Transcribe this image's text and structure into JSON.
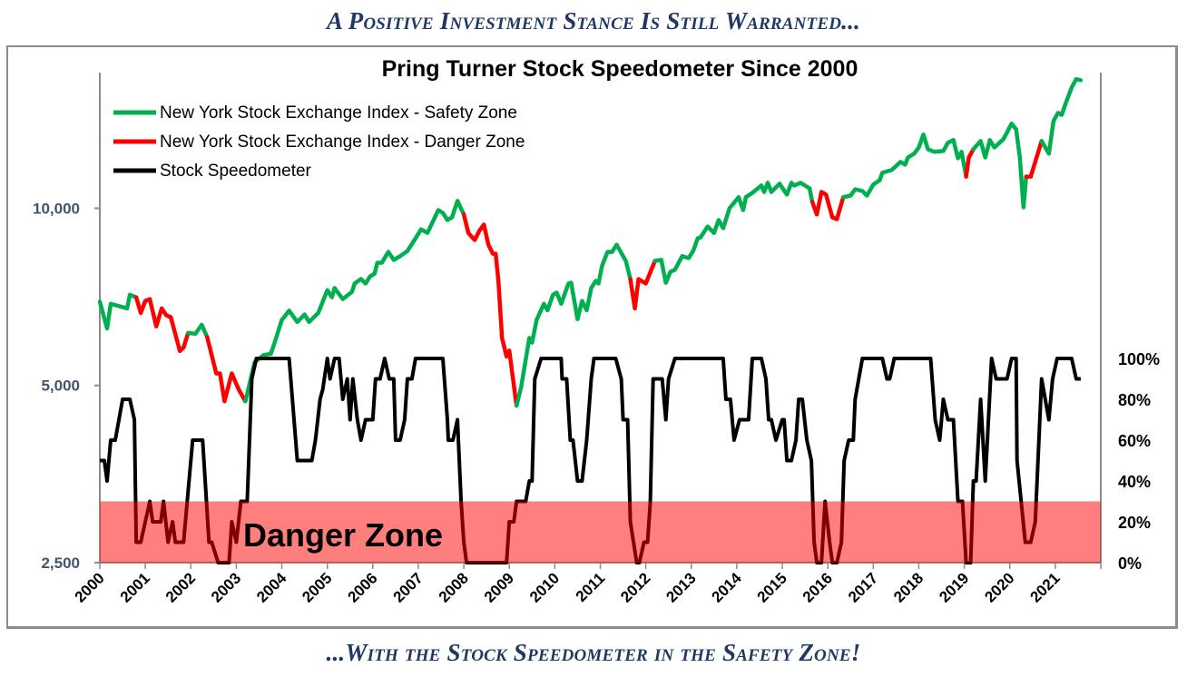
{
  "header": {
    "top_banner": "A Positive Investment Stance Is Still Warranted...",
    "bottom_banner": "...With the Stock Speedometer in the Safety Zone!"
  },
  "colors": {
    "safety": "#00b050",
    "danger": "#ff0000",
    "speedometer": "#000000",
    "danger_zone": "#ff0000",
    "banner": "#1f3864"
  },
  "chart_data": {
    "type": "line",
    "title": "Pring Turner Stock Speedometer Since 2000",
    "annotation": "Danger Zone",
    "legend": [
      "New York Stock Exchange Index - Safety Zone",
      "New York Stock Exchange Index - Danger Zone",
      "Stock Speedometer"
    ],
    "legend_position": "top-left",
    "x_ticks": [
      "2000",
      "2001",
      "2002",
      "2003",
      "2004",
      "2005",
      "2006",
      "2007",
      "2008",
      "2009",
      "2010",
      "2011",
      "2012",
      "2013",
      "2014",
      "2015",
      "2016",
      "2017",
      "2018",
      "2019",
      "2020",
      "2021"
    ],
    "xlim": [
      2000,
      2022
    ],
    "left_axis": {
      "scale": "log",
      "ticks": [
        2500,
        5000,
        10000
      ],
      "tick_labels": [
        "2,500",
        "5,000",
        "10,000"
      ],
      "ylim": [
        2500,
        17000
      ]
    },
    "right_axis": {
      "ticks": [
        0,
        20,
        40,
        60,
        80,
        100
      ],
      "tick_labels": [
        "0%",
        "20%",
        "40%",
        "60%",
        "80%",
        "100%"
      ],
      "ylim": [
        0,
        100
      ]
    },
    "danger_zone_range": [
      0,
      30
    ],
    "danger_periods": [
      [
        2000.8,
        2001.9
      ],
      [
        2002.36,
        2003.15
      ],
      [
        2007.96,
        2009.16
      ],
      [
        2011.66,
        2012.2
      ],
      [
        2015.66,
        2016.36
      ],
      [
        2019.04,
        2019.2
      ],
      [
        2020.36,
        2020.7
      ]
    ],
    "nyse": [
      [
        2000.0,
        6940
      ],
      [
        2000.16,
        6250
      ],
      [
        2000.24,
        6880
      ],
      [
        2000.6,
        6760
      ],
      [
        2000.66,
        7130
      ],
      [
        2000.8,
        7060
      ],
      [
        2000.9,
        6640
      ],
      [
        2001.0,
        6960
      ],
      [
        2001.1,
        7010
      ],
      [
        2001.24,
        6300
      ],
      [
        2001.36,
        6760
      ],
      [
        2001.46,
        6580
      ],
      [
        2001.56,
        6530
      ],
      [
        2001.76,
        5720
      ],
      [
        2001.84,
        5800
      ],
      [
        2001.94,
        6140
      ],
      [
        2002.1,
        6120
      ],
      [
        2002.24,
        6340
      ],
      [
        2002.36,
        6040
      ],
      [
        2002.56,
        5240
      ],
      [
        2002.64,
        5240
      ],
      [
        2002.74,
        4700
      ],
      [
        2002.9,
        5240
      ],
      [
        2003.06,
        4910
      ],
      [
        2003.2,
        4700
      ],
      [
        2003.26,
        4910
      ],
      [
        2003.4,
        5470
      ],
      [
        2003.6,
        5630
      ],
      [
        2003.76,
        5660
      ],
      [
        2003.86,
        5970
      ],
      [
        2004.0,
        6460
      ],
      [
        2004.16,
        6700
      ],
      [
        2004.34,
        6410
      ],
      [
        2004.5,
        6600
      ],
      [
        2004.6,
        6410
      ],
      [
        2004.8,
        6640
      ],
      [
        2005.0,
        7260
      ],
      [
        2005.1,
        7060
      ],
      [
        2005.16,
        7320
      ],
      [
        2005.34,
        7010
      ],
      [
        2005.54,
        7210
      ],
      [
        2005.6,
        7450
      ],
      [
        2005.74,
        7580
      ],
      [
        2005.84,
        7450
      ],
      [
        2005.94,
        7660
      ],
      [
        2006.04,
        7740
      ],
      [
        2006.1,
        8080
      ],
      [
        2006.2,
        8080
      ],
      [
        2006.34,
        8430
      ],
      [
        2006.46,
        8170
      ],
      [
        2006.6,
        8290
      ],
      [
        2006.76,
        8460
      ],
      [
        2006.94,
        8890
      ],
      [
        2007.06,
        9210
      ],
      [
        2007.2,
        9080
      ],
      [
        2007.44,
        9930
      ],
      [
        2007.54,
        9820
      ],
      [
        2007.64,
        9550
      ],
      [
        2007.74,
        9650
      ],
      [
        2007.86,
        10290
      ],
      [
        2008.0,
        9760
      ],
      [
        2008.1,
        9080
      ],
      [
        2008.24,
        8830
      ],
      [
        2008.34,
        9150
      ],
      [
        2008.44,
        9380
      ],
      [
        2008.54,
        8670
      ],
      [
        2008.64,
        8370
      ],
      [
        2008.7,
        8370
      ],
      [
        2008.76,
        7530
      ],
      [
        2008.84,
        6020
      ],
      [
        2008.94,
        5600
      ],
      [
        2009.0,
        5730
      ],
      [
        2009.16,
        4620
      ],
      [
        2009.26,
        4970
      ],
      [
        2009.44,
        6020
      ],
      [
        2009.5,
        5910
      ],
      [
        2009.6,
        6460
      ],
      [
        2009.76,
        6880
      ],
      [
        2009.84,
        6710
      ],
      [
        2009.96,
        7130
      ],
      [
        2010.04,
        7190
      ],
      [
        2010.14,
        6880
      ],
      [
        2010.3,
        7450
      ],
      [
        2010.36,
        7470
      ],
      [
        2010.5,
        6480
      ],
      [
        2010.6,
        6960
      ],
      [
        2010.7,
        6710
      ],
      [
        2010.8,
        7320
      ],
      [
        2010.9,
        7530
      ],
      [
        2010.96,
        7450
      ],
      [
        2011.04,
        7990
      ],
      [
        2011.16,
        8430
      ],
      [
        2011.26,
        8430
      ],
      [
        2011.36,
        8670
      ],
      [
        2011.56,
        8140
      ],
      [
        2011.66,
        7580
      ],
      [
        2011.76,
        6760
      ],
      [
        2011.84,
        7580
      ],
      [
        2012.0,
        7450
      ],
      [
        2012.2,
        8140
      ],
      [
        2012.34,
        8170
      ],
      [
        2012.44,
        7470
      ],
      [
        2012.54,
        7800
      ],
      [
        2012.64,
        7860
      ],
      [
        2012.8,
        8290
      ],
      [
        2012.94,
        8230
      ],
      [
        2013.04,
        8460
      ],
      [
        2013.14,
        8890
      ],
      [
        2013.2,
        8920
      ],
      [
        2013.36,
        9310
      ],
      [
        2013.5,
        9080
      ],
      [
        2013.6,
        9550
      ],
      [
        2013.7,
        9250
      ],
      [
        2013.84,
        10000
      ],
      [
        2014.04,
        10440
      ],
      [
        2014.14,
        9930
      ],
      [
        2014.2,
        10440
      ],
      [
        2014.34,
        10620
      ],
      [
        2014.54,
        10930
      ],
      [
        2014.6,
        10660
      ],
      [
        2014.68,
        11050
      ],
      [
        2014.76,
        10660
      ],
      [
        2014.94,
        11010
      ],
      [
        2015.1,
        10550
      ],
      [
        2015.2,
        11050
      ],
      [
        2015.26,
        10930
      ],
      [
        2015.4,
        11050
      ],
      [
        2015.6,
        10810
      ],
      [
        2015.66,
        10250
      ],
      [
        2015.76,
        9760
      ],
      [
        2015.86,
        10660
      ],
      [
        2015.96,
        10550
      ],
      [
        2016.1,
        9650
      ],
      [
        2016.2,
        9580
      ],
      [
        2016.34,
        10440
      ],
      [
        2016.5,
        10510
      ],
      [
        2016.6,
        10770
      ],
      [
        2016.76,
        10700
      ],
      [
        2016.86,
        10510
      ],
      [
        2017.0,
        10970
      ],
      [
        2017.14,
        11160
      ],
      [
        2017.2,
        11490
      ],
      [
        2017.4,
        11610
      ],
      [
        2017.6,
        11990
      ],
      [
        2017.7,
        11860
      ],
      [
        2017.76,
        12200
      ],
      [
        2017.9,
        12380
      ],
      [
        2018.0,
        12690
      ],
      [
        2018.1,
        13340
      ],
      [
        2018.2,
        12600
      ],
      [
        2018.34,
        12470
      ],
      [
        2018.54,
        12510
      ],
      [
        2018.64,
        12920
      ],
      [
        2018.76,
        13060
      ],
      [
        2018.86,
        12160
      ],
      [
        2018.94,
        12470
      ],
      [
        2019.04,
        11320
      ],
      [
        2019.1,
        12200
      ],
      [
        2019.2,
        12600
      ],
      [
        2019.36,
        13010
      ],
      [
        2019.46,
        12200
      ],
      [
        2019.56,
        13060
      ],
      [
        2019.66,
        12690
      ],
      [
        2019.86,
        13100
      ],
      [
        2020.04,
        13920
      ],
      [
        2020.14,
        13620
      ],
      [
        2020.22,
        12200
      ],
      [
        2020.3,
        10040
      ],
      [
        2020.36,
        11320
      ],
      [
        2020.46,
        11320
      ],
      [
        2020.7,
        13010
      ],
      [
        2020.86,
        12380
      ],
      [
        2020.96,
        14070
      ],
      [
        2021.06,
        14520
      ],
      [
        2021.14,
        14410
      ],
      [
        2021.24,
        15160
      ],
      [
        2021.36,
        16040
      ],
      [
        2021.46,
        16570
      ],
      [
        2021.56,
        16500
      ]
    ],
    "speedometer": [
      [
        2000.0,
        50
      ],
      [
        2000.1,
        50
      ],
      [
        2000.16,
        40
      ],
      [
        2000.24,
        60
      ],
      [
        2000.34,
        60
      ],
      [
        2000.5,
        80
      ],
      [
        2000.66,
        80
      ],
      [
        2000.76,
        70
      ],
      [
        2000.8,
        10
      ],
      [
        2000.9,
        10
      ],
      [
        2001.1,
        30
      ],
      [
        2001.16,
        20
      ],
      [
        2001.34,
        20
      ],
      [
        2001.4,
        30
      ],
      [
        2001.5,
        10
      ],
      [
        2001.6,
        20
      ],
      [
        2001.66,
        10
      ],
      [
        2001.84,
        10
      ],
      [
        2002.04,
        60
      ],
      [
        2002.26,
        60
      ],
      [
        2002.4,
        10
      ],
      [
        2002.46,
        10
      ],
      [
        2002.6,
        0
      ],
      [
        2002.84,
        0
      ],
      [
        2002.9,
        20
      ],
      [
        2003.0,
        10
      ],
      [
        2003.1,
        30
      ],
      [
        2003.24,
        30
      ],
      [
        2003.34,
        90
      ],
      [
        2003.44,
        100
      ],
      [
        2004.16,
        100
      ],
      [
        2004.34,
        50
      ],
      [
        2004.66,
        50
      ],
      [
        2004.74,
        60
      ],
      [
        2004.84,
        80
      ],
      [
        2004.9,
        85
      ],
      [
        2005.0,
        100
      ],
      [
        2005.06,
        90
      ],
      [
        2005.16,
        100
      ],
      [
        2005.26,
        100
      ],
      [
        2005.34,
        80
      ],
      [
        2005.44,
        90
      ],
      [
        2005.5,
        70
      ],
      [
        2005.56,
        90
      ],
      [
        2005.66,
        70
      ],
      [
        2005.74,
        60
      ],
      [
        2005.84,
        70
      ],
      [
        2006.0,
        70
      ],
      [
        2006.06,
        90
      ],
      [
        2006.16,
        90
      ],
      [
        2006.26,
        100
      ],
      [
        2006.36,
        90
      ],
      [
        2006.46,
        90
      ],
      [
        2006.5,
        60
      ],
      [
        2006.6,
        60
      ],
      [
        2006.7,
        70
      ],
      [
        2006.76,
        90
      ],
      [
        2006.86,
        90
      ],
      [
        2006.94,
        100
      ],
      [
        2007.54,
        100
      ],
      [
        2007.64,
        70
      ],
      [
        2007.66,
        60
      ],
      [
        2007.76,
        60
      ],
      [
        2007.86,
        70
      ],
      [
        2007.94,
        30
      ],
      [
        2008.0,
        10
      ],
      [
        2008.06,
        0
      ],
      [
        2008.94,
        0
      ],
      [
        2009.0,
        20
      ],
      [
        2009.1,
        20
      ],
      [
        2009.16,
        30
      ],
      [
        2009.36,
        30
      ],
      [
        2009.44,
        40
      ],
      [
        2009.5,
        40
      ],
      [
        2009.56,
        90
      ],
      [
        2009.7,
        100
      ],
      [
        2010.14,
        100
      ],
      [
        2010.16,
        90
      ],
      [
        2010.26,
        90
      ],
      [
        2010.34,
        60
      ],
      [
        2010.4,
        60
      ],
      [
        2010.5,
        40
      ],
      [
        2010.6,
        40
      ],
      [
        2010.7,
        60
      ],
      [
        2010.8,
        90
      ],
      [
        2010.86,
        100
      ],
      [
        2011.34,
        100
      ],
      [
        2011.46,
        90
      ],
      [
        2011.5,
        70
      ],
      [
        2011.6,
        70
      ],
      [
        2011.66,
        20
      ],
      [
        2011.8,
        0
      ],
      [
        2011.86,
        0
      ],
      [
        2011.96,
        10
      ],
      [
        2012.04,
        10
      ],
      [
        2012.1,
        30
      ],
      [
        2012.16,
        90
      ],
      [
        2012.36,
        90
      ],
      [
        2012.44,
        70
      ],
      [
        2012.5,
        90
      ],
      [
        2012.64,
        100
      ],
      [
        2013.7,
        100
      ],
      [
        2013.76,
        80
      ],
      [
        2013.86,
        80
      ],
      [
        2013.94,
        60
      ],
      [
        2014.06,
        70
      ],
      [
        2014.26,
        70
      ],
      [
        2014.34,
        100
      ],
      [
        2014.54,
        100
      ],
      [
        2014.64,
        90
      ],
      [
        2014.7,
        70
      ],
      [
        2014.76,
        70
      ],
      [
        2014.86,
        60
      ],
      [
        2015.0,
        70
      ],
      [
        2015.04,
        70
      ],
      [
        2015.1,
        50
      ],
      [
        2015.2,
        50
      ],
      [
        2015.3,
        60
      ],
      [
        2015.36,
        80
      ],
      [
        2015.44,
        80
      ],
      [
        2015.54,
        60
      ],
      [
        2015.64,
        50
      ],
      [
        2015.7,
        10
      ],
      [
        2015.76,
        0
      ],
      [
        2015.86,
        0
      ],
      [
        2015.94,
        30
      ],
      [
        2016.04,
        10
      ],
      [
        2016.1,
        0
      ],
      [
        2016.2,
        0
      ],
      [
        2016.3,
        10
      ],
      [
        2016.36,
        50
      ],
      [
        2016.46,
        60
      ],
      [
        2016.56,
        60
      ],
      [
        2016.6,
        80
      ],
      [
        2016.76,
        100
      ],
      [
        2017.2,
        100
      ],
      [
        2017.3,
        90
      ],
      [
        2017.36,
        90
      ],
      [
        2017.46,
        100
      ],
      [
        2018.26,
        100
      ],
      [
        2018.36,
        70
      ],
      [
        2018.46,
        60
      ],
      [
        2018.54,
        80
      ],
      [
        2018.64,
        70
      ],
      [
        2018.76,
        70
      ],
      [
        2018.86,
        30
      ],
      [
        2018.96,
        30
      ],
      [
        2019.04,
        0
      ],
      [
        2019.14,
        0
      ],
      [
        2019.2,
        40
      ],
      [
        2019.26,
        40
      ],
      [
        2019.36,
        80
      ],
      [
        2019.46,
        40
      ],
      [
        2019.6,
        100
      ],
      [
        2019.7,
        90
      ],
      [
        2019.94,
        90
      ],
      [
        2020.04,
        100
      ],
      [
        2020.14,
        100
      ],
      [
        2020.16,
        50
      ],
      [
        2020.34,
        10
      ],
      [
        2020.46,
        10
      ],
      [
        2020.56,
        20
      ],
      [
        2020.7,
        90
      ],
      [
        2020.86,
        70
      ],
      [
        2020.94,
        90
      ],
      [
        2021.04,
        100
      ],
      [
        2021.36,
        100
      ],
      [
        2021.46,
        90
      ],
      [
        2021.56,
        90
      ]
    ]
  }
}
